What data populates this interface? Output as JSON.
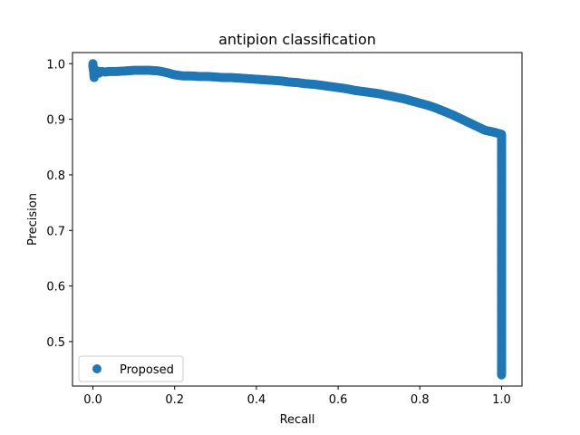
{
  "chart_data": {
    "type": "scatter",
    "title": "antipion classification",
    "xlabel": "Recall",
    "ylabel": "Precision",
    "xlim": [
      -0.05,
      1.05
    ],
    "ylim": [
      0.42,
      1.02
    ],
    "xticks": [
      0.0,
      0.2,
      0.4,
      0.6,
      0.8,
      1.0
    ],
    "xtick_labels": [
      "0.0",
      "0.2",
      "0.4",
      "0.6",
      "0.8",
      "1.0"
    ],
    "yticks": [
      0.5,
      0.6,
      0.7,
      0.8,
      0.9,
      1.0
    ],
    "ytick_labels": [
      "0.5",
      "0.6",
      "0.7",
      "0.8",
      "0.9",
      "1.0"
    ],
    "grid": false,
    "legend_position": "lower-left",
    "series": [
      {
        "name": "Proposed",
        "color": "#1f77b4",
        "points": [
          [
            0.0,
            1.0
          ],
          [
            0.0,
            0.995
          ],
          [
            0.002,
            0.985
          ],
          [
            0.003,
            0.975
          ],
          [
            0.004,
            0.99
          ],
          [
            0.005,
            0.98
          ],
          [
            0.008,
            0.985
          ],
          [
            0.01,
            0.987
          ],
          [
            0.015,
            0.983
          ],
          [
            0.02,
            0.986
          ],
          [
            0.03,
            0.985
          ],
          [
            0.04,
            0.986
          ],
          [
            0.05,
            0.986
          ],
          [
            0.06,
            0.986
          ],
          [
            0.08,
            0.987
          ],
          [
            0.1,
            0.988
          ],
          [
            0.12,
            0.988
          ],
          [
            0.14,
            0.988
          ],
          [
            0.16,
            0.987
          ],
          [
            0.18,
            0.984
          ],
          [
            0.2,
            0.98
          ],
          [
            0.22,
            0.978
          ],
          [
            0.24,
            0.978
          ],
          [
            0.26,
            0.977
          ],
          [
            0.28,
            0.977
          ],
          [
            0.3,
            0.976
          ],
          [
            0.32,
            0.975
          ],
          [
            0.34,
            0.975
          ],
          [
            0.36,
            0.974
          ],
          [
            0.38,
            0.973
          ],
          [
            0.4,
            0.972
          ],
          [
            0.42,
            0.971
          ],
          [
            0.44,
            0.97
          ],
          [
            0.46,
            0.969
          ],
          [
            0.48,
            0.967
          ],
          [
            0.5,
            0.966
          ],
          [
            0.52,
            0.964
          ],
          [
            0.54,
            0.963
          ],
          [
            0.56,
            0.961
          ],
          [
            0.58,
            0.959
          ],
          [
            0.6,
            0.957
          ],
          [
            0.62,
            0.955
          ],
          [
            0.64,
            0.952
          ],
          [
            0.66,
            0.95
          ],
          [
            0.68,
            0.948
          ],
          [
            0.7,
            0.946
          ],
          [
            0.72,
            0.943
          ],
          [
            0.74,
            0.94
          ],
          [
            0.76,
            0.937
          ],
          [
            0.78,
            0.933
          ],
          [
            0.8,
            0.929
          ],
          [
            0.82,
            0.925
          ],
          [
            0.84,
            0.92
          ],
          [
            0.86,
            0.914
          ],
          [
            0.88,
            0.908
          ],
          [
            0.9,
            0.901
          ],
          [
            0.92,
            0.894
          ],
          [
            0.94,
            0.887
          ],
          [
            0.96,
            0.88
          ],
          [
            0.98,
            0.877
          ],
          [
            1.0,
            0.873
          ],
          [
            1.0,
            0.85
          ],
          [
            1.0,
            0.82
          ],
          [
            1.0,
            0.79
          ],
          [
            1.0,
            0.76
          ],
          [
            1.0,
            0.73
          ],
          [
            1.0,
            0.7
          ],
          [
            1.0,
            0.67
          ],
          [
            1.0,
            0.64
          ],
          [
            1.0,
            0.61
          ],
          [
            1.0,
            0.58
          ],
          [
            1.0,
            0.55
          ],
          [
            1.0,
            0.52
          ],
          [
            1.0,
            0.49
          ],
          [
            1.0,
            0.46
          ],
          [
            1.0,
            0.44
          ]
        ]
      }
    ]
  }
}
